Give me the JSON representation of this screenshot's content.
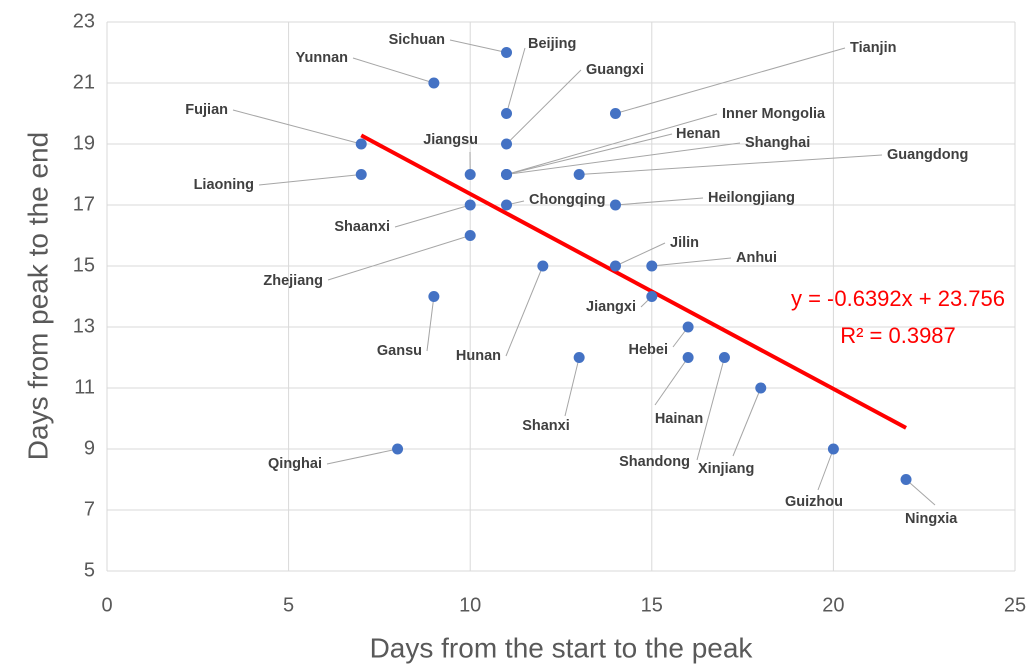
{
  "chart_data": {
    "type": "scatter",
    "x_label": "Days from the start to the peak",
    "y_label": "Days from peak to the end",
    "labels": [
      "Sichuan",
      "Yunnan",
      "Beijing",
      "Guangxi",
      "Tianjin",
      "Fujian",
      "Jiangsu",
      "Inner Mongolia",
      "Henan",
      "Shanghai",
      "Guangdong",
      "Liaoning",
      "Chongqing",
      "Heilongjiang",
      "Shaanxi",
      "Zhejiang",
      "Hunan",
      "Jilin",
      "Anhui",
      "Gansu",
      "Jiangxi",
      "Hebei",
      "Shanxi",
      "Hainan",
      "Shandong",
      "Xinjiang",
      "Guizhou",
      "Qinghai",
      "Ningxia"
    ],
    "x": [
      11,
      9,
      11,
      11,
      14,
      7,
      10,
      11,
      11,
      11,
      13,
      7,
      11,
      14,
      10,
      10,
      12,
      14,
      15,
      9,
      15,
      16,
      13,
      16,
      17,
      18,
      20,
      8,
      22
    ],
    "y": [
      22,
      21,
      20,
      19,
      20,
      19,
      18,
      18,
      18,
      18,
      18,
      18,
      17,
      17,
      17,
      16,
      15,
      15,
      15,
      14,
      14,
      13,
      12,
      12,
      12,
      11,
      9,
      9,
      8
    ],
    "color": "#4472c4",
    "xlim": [
      0,
      25
    ],
    "xticks": [
      0,
      5,
      10,
      15,
      20,
      25
    ],
    "ylim": [
      5,
      23
    ],
    "yticks": [
      5,
      7,
      9,
      11,
      13,
      15,
      17,
      19,
      21,
      23
    ],
    "grid": true,
    "trendline": {
      "slope": -0.6392,
      "intercept": 23.756,
      "color": "#ff0000",
      "equation": "y = -0.6392x + 23.756",
      "r_squared_label": "R² = 0.3987"
    }
  }
}
